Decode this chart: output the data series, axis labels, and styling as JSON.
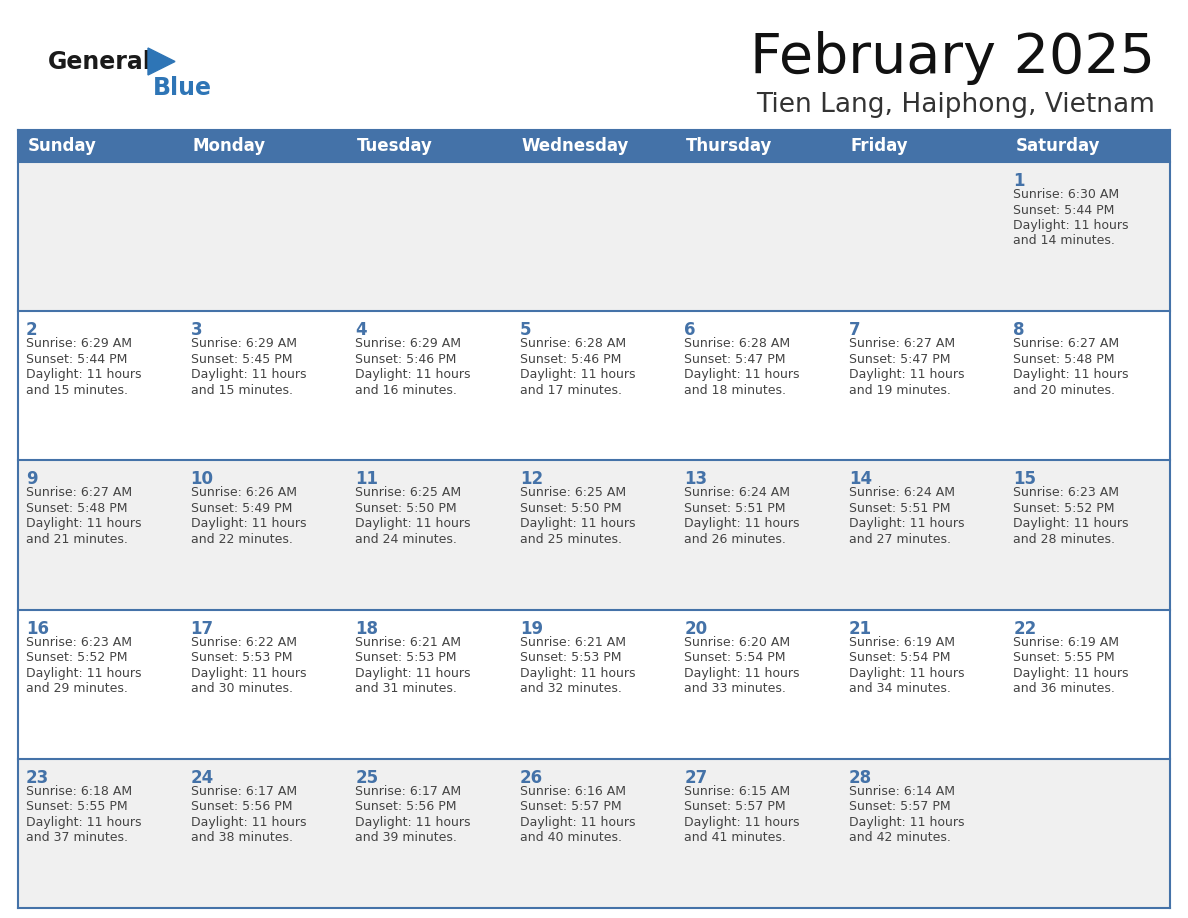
{
  "title": "February 2025",
  "subtitle": "Tien Lang, Haiphong, Vietnam",
  "days_of_week": [
    "Sunday",
    "Monday",
    "Tuesday",
    "Wednesday",
    "Thursday",
    "Friday",
    "Saturday"
  ],
  "header_bg": "#4472A8",
  "header_text": "#FFFFFF",
  "cell_bg_odd": "#F0F0F0",
  "cell_bg_even": "#FFFFFF",
  "border_color": "#4472A8",
  "day_number_color": "#4472A8",
  "text_color": "#444444",
  "logo_general_color": "#1a1a1a",
  "logo_blue_color": "#2E75B6",
  "calendar_data": [
    [
      null,
      null,
      null,
      null,
      null,
      null,
      {
        "day": 1,
        "sunrise": "6:30 AM",
        "sunset": "5:44 PM",
        "daylight_hours": 11,
        "daylight_minutes": 14
      }
    ],
    [
      {
        "day": 2,
        "sunrise": "6:29 AM",
        "sunset": "5:44 PM",
        "daylight_hours": 11,
        "daylight_minutes": 15
      },
      {
        "day": 3,
        "sunrise": "6:29 AM",
        "sunset": "5:45 PM",
        "daylight_hours": 11,
        "daylight_minutes": 15
      },
      {
        "day": 4,
        "sunrise": "6:29 AM",
        "sunset": "5:46 PM",
        "daylight_hours": 11,
        "daylight_minutes": 16
      },
      {
        "day": 5,
        "sunrise": "6:28 AM",
        "sunset": "5:46 PM",
        "daylight_hours": 11,
        "daylight_minutes": 17
      },
      {
        "day": 6,
        "sunrise": "6:28 AM",
        "sunset": "5:47 PM",
        "daylight_hours": 11,
        "daylight_minutes": 18
      },
      {
        "day": 7,
        "sunrise": "6:27 AM",
        "sunset": "5:47 PM",
        "daylight_hours": 11,
        "daylight_minutes": 19
      },
      {
        "day": 8,
        "sunrise": "6:27 AM",
        "sunset": "5:48 PM",
        "daylight_hours": 11,
        "daylight_minutes": 20
      }
    ],
    [
      {
        "day": 9,
        "sunrise": "6:27 AM",
        "sunset": "5:48 PM",
        "daylight_hours": 11,
        "daylight_minutes": 21
      },
      {
        "day": 10,
        "sunrise": "6:26 AM",
        "sunset": "5:49 PM",
        "daylight_hours": 11,
        "daylight_minutes": 22
      },
      {
        "day": 11,
        "sunrise": "6:25 AM",
        "sunset": "5:50 PM",
        "daylight_hours": 11,
        "daylight_minutes": 24
      },
      {
        "day": 12,
        "sunrise": "6:25 AM",
        "sunset": "5:50 PM",
        "daylight_hours": 11,
        "daylight_minutes": 25
      },
      {
        "day": 13,
        "sunrise": "6:24 AM",
        "sunset": "5:51 PM",
        "daylight_hours": 11,
        "daylight_minutes": 26
      },
      {
        "day": 14,
        "sunrise": "6:24 AM",
        "sunset": "5:51 PM",
        "daylight_hours": 11,
        "daylight_minutes": 27
      },
      {
        "day": 15,
        "sunrise": "6:23 AM",
        "sunset": "5:52 PM",
        "daylight_hours": 11,
        "daylight_minutes": 28
      }
    ],
    [
      {
        "day": 16,
        "sunrise": "6:23 AM",
        "sunset": "5:52 PM",
        "daylight_hours": 11,
        "daylight_minutes": 29
      },
      {
        "day": 17,
        "sunrise": "6:22 AM",
        "sunset": "5:53 PM",
        "daylight_hours": 11,
        "daylight_minutes": 30
      },
      {
        "day": 18,
        "sunrise": "6:21 AM",
        "sunset": "5:53 PM",
        "daylight_hours": 11,
        "daylight_minutes": 31
      },
      {
        "day": 19,
        "sunrise": "6:21 AM",
        "sunset": "5:53 PM",
        "daylight_hours": 11,
        "daylight_minutes": 32
      },
      {
        "day": 20,
        "sunrise": "6:20 AM",
        "sunset": "5:54 PM",
        "daylight_hours": 11,
        "daylight_minutes": 33
      },
      {
        "day": 21,
        "sunrise": "6:19 AM",
        "sunset": "5:54 PM",
        "daylight_hours": 11,
        "daylight_minutes": 34
      },
      {
        "day": 22,
        "sunrise": "6:19 AM",
        "sunset": "5:55 PM",
        "daylight_hours": 11,
        "daylight_minutes": 36
      }
    ],
    [
      {
        "day": 23,
        "sunrise": "6:18 AM",
        "sunset": "5:55 PM",
        "daylight_hours": 11,
        "daylight_minutes": 37
      },
      {
        "day": 24,
        "sunrise": "6:17 AM",
        "sunset": "5:56 PM",
        "daylight_hours": 11,
        "daylight_minutes": 38
      },
      {
        "day": 25,
        "sunrise": "6:17 AM",
        "sunset": "5:56 PM",
        "daylight_hours": 11,
        "daylight_minutes": 39
      },
      {
        "day": 26,
        "sunrise": "6:16 AM",
        "sunset": "5:57 PM",
        "daylight_hours": 11,
        "daylight_minutes": 40
      },
      {
        "day": 27,
        "sunrise": "6:15 AM",
        "sunset": "5:57 PM",
        "daylight_hours": 11,
        "daylight_minutes": 41
      },
      {
        "day": 28,
        "sunrise": "6:14 AM",
        "sunset": "5:57 PM",
        "daylight_hours": 11,
        "daylight_minutes": 42
      },
      null
    ]
  ]
}
